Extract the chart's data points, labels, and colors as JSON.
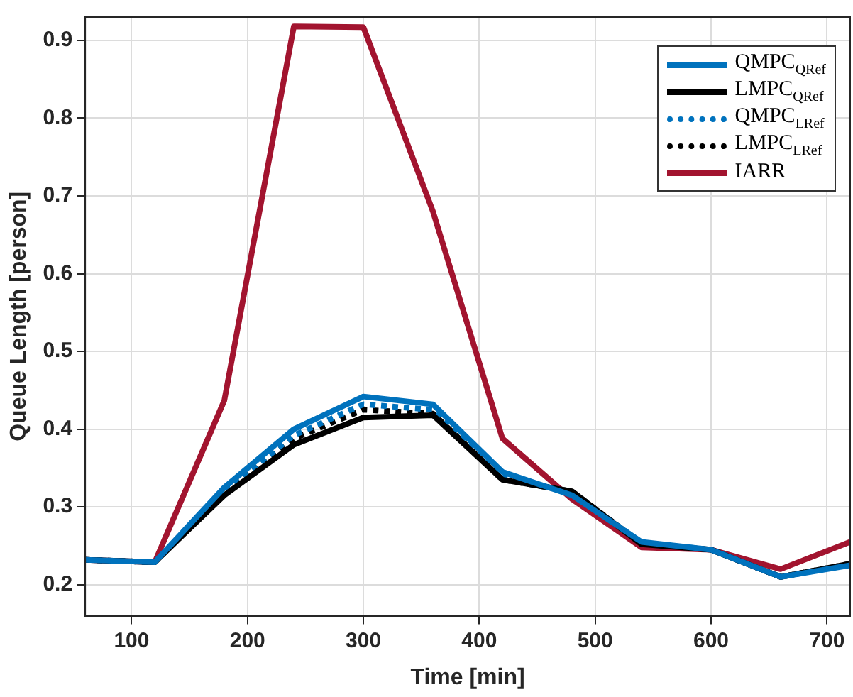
{
  "chart_data": {
    "type": "line",
    "xlabel": "Time [min]",
    "ylabel": "Queue Length [person]",
    "x": [
      60,
      120,
      180,
      240,
      300,
      360,
      420,
      480,
      540,
      600,
      660,
      720
    ],
    "xlim": [
      60,
      720
    ],
    "xticks": [
      100,
      200,
      300,
      400,
      500,
      600,
      700
    ],
    "ylim": [
      0.16,
      0.93
    ],
    "yticks": [
      0.2,
      0.3,
      0.4,
      0.5,
      0.6,
      0.7,
      0.8,
      0.9
    ],
    "grid": true,
    "legend": "top right",
    "marker": "none",
    "series": [
      {
        "name": "QMPC$_{QRef}$",
        "color": "#0072bd",
        "line_style": "solid",
        "values": [
          0.232,
          0.229,
          0.325,
          0.4,
          0.442,
          0.432,
          0.345,
          0.315,
          0.255,
          0.245,
          0.21,
          0.225
        ]
      },
      {
        "name": "LMPC$_{QRef}$",
        "color": "#000000",
        "line_style": "solid",
        "values": [
          0.232,
          0.229,
          0.315,
          0.38,
          0.415,
          0.418,
          0.335,
          0.32,
          0.252,
          0.245,
          0.21,
          0.227
        ]
      },
      {
        "name": "QMPC$_{LRef}$",
        "color": "#0072bd",
        "line_style": "dotted",
        "values": [
          0.232,
          0.229,
          0.32,
          0.392,
          0.432,
          0.425,
          0.34,
          0.318,
          0.254,
          0.245,
          0.21,
          0.226
        ]
      },
      {
        "name": "LMPC$_{LRef}$",
        "color": "#000000",
        "line_style": "dotted",
        "values": [
          0.232,
          0.229,
          0.318,
          0.388,
          0.425,
          0.42,
          0.335,
          0.32,
          0.253,
          0.245,
          0.21,
          0.227
        ]
      },
      {
        "name": "IARR",
        "color": "#a2142f",
        "line_style": "solid",
        "values": [
          0.232,
          0.229,
          0.437,
          0.918,
          0.917,
          0.68,
          0.388,
          0.31,
          0.248,
          0.245,
          0.22,
          0.255
        ]
      }
    ]
  }
}
